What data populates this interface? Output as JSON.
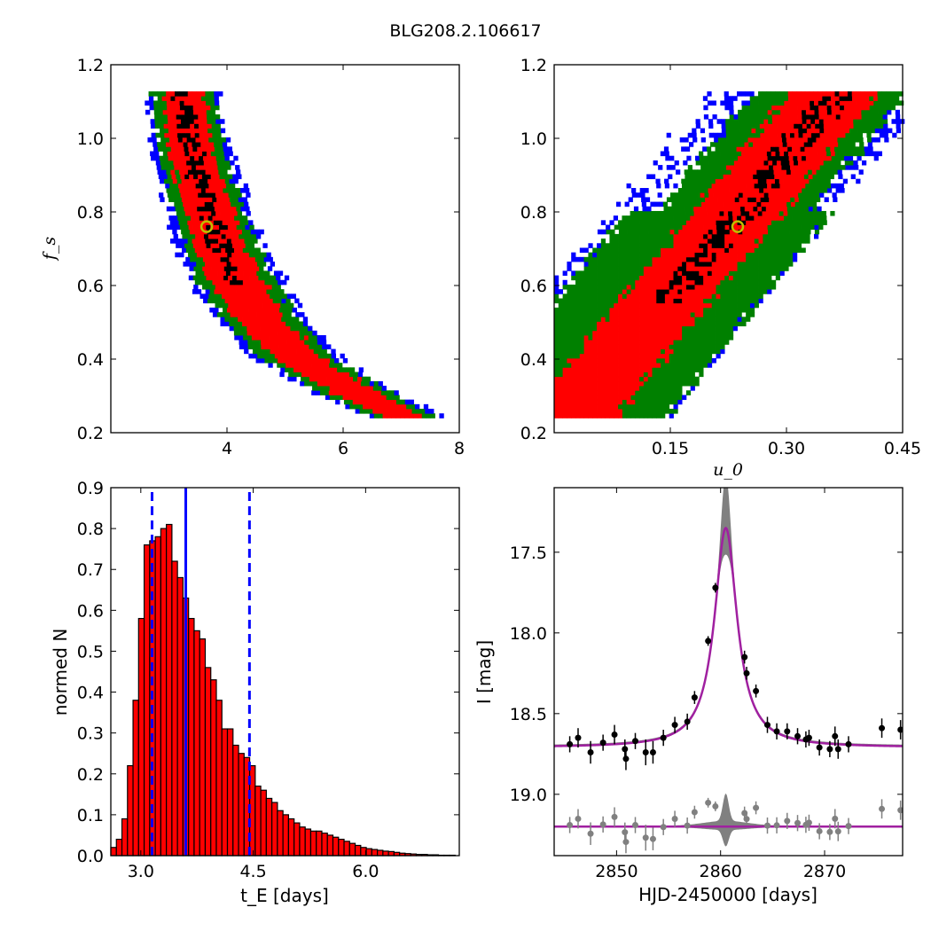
{
  "figure": {
    "title": "BLG208.2.106617"
  },
  "colors": {
    "outer": "#0000ff",
    "mid": "#008000",
    "inner": "#ff0000",
    "core": "#000000",
    "marker": "#bfbf00",
    "model": "#a020a0",
    "band": "#808080",
    "line": "#0000ff",
    "hist": "#ff0000"
  },
  "chart_data": [
    {
      "type": "heatmap",
      "panel": "top-left",
      "xlabel": "",
      "ylabel": "f_s",
      "xlim": [
        2,
        8
      ],
      "ylim": [
        0.2,
        1.2
      ],
      "xticks": [
        "4",
        "6",
        "8"
      ],
      "yticks": [
        "0.2",
        "0.4",
        "0.6",
        "0.8",
        "1.0",
        "1.2"
      ],
      "best_fit": {
        "x": 3.65,
        "y": 0.76
      },
      "region_samples": [
        {
          "y": 1.12,
          "x": 3.2
        },
        {
          "y": 1.0,
          "x": 3.3
        },
        {
          "y": 0.9,
          "x": 3.45
        },
        {
          "y": 0.8,
          "x": 3.65
        },
        {
          "y": 0.7,
          "x": 3.85
        },
        {
          "y": 0.6,
          "x": 4.15
        },
        {
          "y": 0.5,
          "x": 4.55
        },
        {
          "y": 0.4,
          "x": 5.15
        },
        {
          "y": 0.3,
          "x": 6.2
        },
        {
          "y": 0.24,
          "x": 7.0
        }
      ]
    },
    {
      "type": "heatmap",
      "panel": "top-right",
      "xlabel": "u_0",
      "ylabel": "",
      "xlim": [
        0.0,
        0.45
      ],
      "ylim": [
        0.2,
        1.2
      ],
      "xticks": [
        "0.15",
        "0.30",
        "0.45"
      ],
      "yticks": [
        "0.2",
        "0.4",
        "0.6",
        "0.8",
        "1.0",
        "1.2"
      ],
      "best_fit": {
        "x": 0.237,
        "y": 0.76
      },
      "region_samples": [
        {
          "y": 0.24,
          "x": 0.03
        },
        {
          "y": 0.4,
          "x": 0.09
        },
        {
          "y": 0.6,
          "x": 0.165
        },
        {
          "y": 0.8,
          "x": 0.245
        },
        {
          "y": 1.0,
          "x": 0.32
        },
        {
          "y": 1.12,
          "x": 0.37
        }
      ]
    },
    {
      "type": "bar",
      "panel": "bottom-left",
      "xlabel": "t_E  [days]",
      "ylabel": "normed N",
      "xlim": [
        2.6,
        7.25
      ],
      "ylim": [
        0.0,
        0.9
      ],
      "xticks": [
        "3.0",
        "4.5",
        "6.0"
      ],
      "yticks": [
        "0.0",
        "0.1",
        "0.2",
        "0.3",
        "0.4",
        "0.5",
        "0.6",
        "0.7",
        "0.8",
        "0.9"
      ],
      "bin_start": 2.6,
      "bin_width": 0.0741,
      "values": [
        0.02,
        0.04,
        0.09,
        0.22,
        0.38,
        0.58,
        0.76,
        0.77,
        0.78,
        0.8,
        0.81,
        0.72,
        0.68,
        0.63,
        0.58,
        0.55,
        0.53,
        0.46,
        0.43,
        0.38,
        0.31,
        0.31,
        0.27,
        0.25,
        0.24,
        0.22,
        0.17,
        0.16,
        0.14,
        0.13,
        0.11,
        0.1,
        0.09,
        0.08,
        0.07,
        0.065,
        0.06,
        0.06,
        0.055,
        0.05,
        0.045,
        0.04,
        0.035,
        0.03,
        0.025,
        0.02,
        0.017,
        0.015,
        0.013,
        0.011,
        0.01,
        0.008,
        0.006,
        0.005,
        0.004,
        0.003,
        0.003,
        0.002,
        0.002,
        0.001,
        0.001,
        0.001
      ],
      "median": 3.6,
      "lower": 3.15,
      "upper": 4.45
    },
    {
      "type": "line",
      "panel": "bottom-right",
      "xlabel": "HJD-2450000 [days]",
      "ylabel": "I [mag]",
      "xlim": [
        2844,
        2877.5
      ],
      "ylim": [
        19.38,
        17.1
      ],
      "xticks": [
        "2850",
        "2860",
        "2870"
      ],
      "yticks": [
        "17.5",
        "18.0",
        "18.5",
        "19.0"
      ],
      "model": {
        "t0": 2860.5,
        "base": 18.71,
        "peak": 17.35,
        "tau": 2.4,
        "residual_level": 19.2
      },
      "points": [
        {
          "x": 2845.5,
          "y": 18.69,
          "err": 0.05
        },
        {
          "x": 2846.3,
          "y": 18.65,
          "err": 0.06
        },
        {
          "x": 2847.5,
          "y": 18.74,
          "err": 0.07
        },
        {
          "x": 2848.7,
          "y": 18.68,
          "err": 0.05
        },
        {
          "x": 2849.8,
          "y": 18.63,
          "err": 0.06
        },
        {
          "x": 2850.8,
          "y": 18.72,
          "err": 0.06
        },
        {
          "x": 2850.9,
          "y": 18.78,
          "err": 0.07
        },
        {
          "x": 2851.8,
          "y": 18.67,
          "err": 0.05
        },
        {
          "x": 2852.8,
          "y": 18.74,
          "err": 0.08
        },
        {
          "x": 2853.5,
          "y": 18.74,
          "err": 0.07
        },
        {
          "x": 2854.5,
          "y": 18.65,
          "err": 0.05
        },
        {
          "x": 2855.6,
          "y": 18.57,
          "err": 0.05
        },
        {
          "x": 2856.8,
          "y": 18.55,
          "err": 0.05
        },
        {
          "x": 2857.5,
          "y": 18.4,
          "err": 0.04
        },
        {
          "x": 2858.8,
          "y": 18.05,
          "err": 0.03
        },
        {
          "x": 2859.5,
          "y": 17.72,
          "err": 0.03
        },
        {
          "x": 2862.3,
          "y": 18.15,
          "err": 0.04
        },
        {
          "x": 2862.5,
          "y": 18.25,
          "err": 0.04
        },
        {
          "x": 2863.4,
          "y": 18.36,
          "err": 0.04
        },
        {
          "x": 2864.5,
          "y": 18.57,
          "err": 0.05
        },
        {
          "x": 2865.4,
          "y": 18.61,
          "err": 0.05
        },
        {
          "x": 2866.4,
          "y": 18.61,
          "err": 0.05
        },
        {
          "x": 2867.4,
          "y": 18.64,
          "err": 0.05
        },
        {
          "x": 2868.2,
          "y": 18.66,
          "err": 0.05
        },
        {
          "x": 2868.5,
          "y": 18.65,
          "err": 0.05
        },
        {
          "x": 2869.5,
          "y": 18.71,
          "err": 0.05
        },
        {
          "x": 2870.5,
          "y": 18.72,
          "err": 0.05
        },
        {
          "x": 2871.0,
          "y": 18.64,
          "err": 0.06
        },
        {
          "x": 2871.3,
          "y": 18.72,
          "err": 0.06
        },
        {
          "x": 2872.3,
          "y": 18.69,
          "err": 0.05
        },
        {
          "x": 2875.5,
          "y": 18.59,
          "err": 0.06
        },
        {
          "x": 2877.3,
          "y": 18.6,
          "err": 0.06
        }
      ]
    }
  ]
}
